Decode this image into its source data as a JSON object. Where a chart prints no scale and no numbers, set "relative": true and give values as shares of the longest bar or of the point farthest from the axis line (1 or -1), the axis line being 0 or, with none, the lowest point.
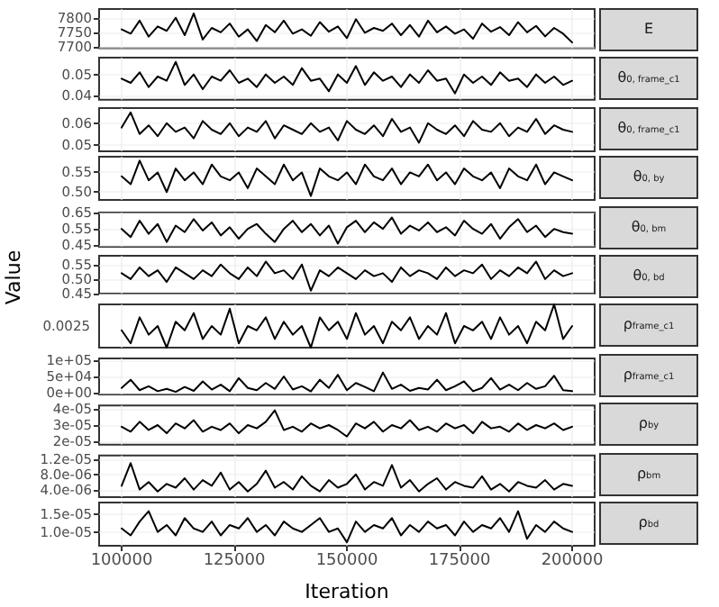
{
  "chart_data": [
    {
      "type": "line",
      "y2label": "E",
      "x": [
        100000,
        102000,
        104000,
        106000,
        108000,
        110000,
        112000,
        114000,
        116000,
        118000,
        120000,
        122000,
        124000,
        126000,
        128000,
        130000,
        132000,
        134000,
        136000,
        138000,
        140000,
        142000,
        144000,
        146000,
        148000,
        150000,
        152000,
        154000,
        156000,
        158000,
        160000,
        162000,
        164000,
        166000,
        168000,
        170000,
        172000,
        174000,
        176000,
        178000,
        180000,
        182000,
        184000,
        186000,
        188000,
        190000,
        192000,
        194000,
        196000,
        198000,
        200000
      ],
      "xlim": [
        95000,
        205000
      ],
      "xticks": [
        100000,
        125000,
        150000,
        175000,
        200000
      ],
      "ylim": [
        7695,
        7830
      ],
      "yticks": [
        7700,
        7750,
        7800
      ],
      "tick_labels": "y",
      "grid": true,
      "series": [
        {
          "color": "#000000",
          "values": [
            7760,
            7745,
            7790,
            7735,
            7770,
            7755,
            7800,
            7740,
            7815,
            7725,
            7765,
            7750,
            7780,
            7735,
            7760,
            7720,
            7775,
            7750,
            7790,
            7745,
            7760,
            7738,
            7785,
            7752,
            7770,
            7730,
            7795,
            7748,
            7765,
            7755,
            7780,
            7740,
            7775,
            7735,
            7790,
            7750,
            7770,
            7745,
            7760,
            7728,
            7780,
            7752,
            7768,
            7740,
            7785,
            7750,
            7772,
            7736,
            7765,
            7745,
            7715
          ]
        }
      ]
    },
    {
      "type": "line",
      "y2label": "θ$_{0, frame_c1}$",
      "x": [
        100000,
        102000,
        104000,
        106000,
        108000,
        110000,
        112000,
        114000,
        116000,
        118000,
        120000,
        122000,
        124000,
        126000,
        128000,
        130000,
        132000,
        134000,
        136000,
        138000,
        140000,
        142000,
        144000,
        146000,
        148000,
        150000,
        152000,
        154000,
        156000,
        158000,
        160000,
        162000,
        164000,
        166000,
        168000,
        170000,
        172000,
        174000,
        176000,
        178000,
        180000,
        182000,
        184000,
        186000,
        188000,
        190000,
        192000,
        194000,
        196000,
        198000,
        200000
      ],
      "xlim": [
        95000,
        205000
      ],
      "xticks": [
        100000,
        125000,
        150000,
        175000,
        200000
      ],
      "ylim": [
        0.038,
        0.058
      ],
      "yticks": [
        0.04,
        0.05
      ],
      "tick_labels": "y",
      "grid": true,
      "series": [
        {
          "color": "#000000",
          "values": [
            0.048,
            0.046,
            0.051,
            0.044,
            0.049,
            0.047,
            0.056,
            0.045,
            0.05,
            0.043,
            0.049,
            0.047,
            0.052,
            0.046,
            0.048,
            0.044,
            0.05,
            0.046,
            0.049,
            0.045,
            0.053,
            0.047,
            0.048,
            0.042,
            0.05,
            0.046,
            0.054,
            0.045,
            0.051,
            0.047,
            0.049,
            0.044,
            0.05,
            0.046,
            0.052,
            0.047,
            0.048,
            0.041,
            0.05,
            0.046,
            0.049,
            0.045,
            0.051,
            0.047,
            0.048,
            0.044,
            0.05,
            0.046,
            0.049,
            0.045,
            0.047
          ]
        }
      ]
    },
    {
      "type": "line",
      "y2label": "θ$_{0, frame_c1}$",
      "x": [
        100000,
        102000,
        104000,
        106000,
        108000,
        110000,
        112000,
        114000,
        116000,
        118000,
        120000,
        122000,
        124000,
        126000,
        128000,
        130000,
        132000,
        134000,
        136000,
        138000,
        140000,
        142000,
        144000,
        146000,
        148000,
        150000,
        152000,
        154000,
        156000,
        158000,
        160000,
        162000,
        164000,
        166000,
        168000,
        170000,
        172000,
        174000,
        176000,
        178000,
        180000,
        182000,
        184000,
        186000,
        188000,
        190000,
        192000,
        194000,
        196000,
        198000,
        200000
      ],
      "xlim": [
        95000,
        205000
      ],
      "xticks": [
        100000,
        125000,
        150000,
        175000,
        200000
      ],
      "ylim": [
        0.047,
        0.067
      ],
      "yticks": [
        0.05,
        0.06
      ],
      "tick_labels": "y",
      "grid": true,
      "series": [
        {
          "color": "#000000",
          "values": [
            0.058,
            0.065,
            0.055,
            0.059,
            0.054,
            0.06,
            0.056,
            0.058,
            0.053,
            0.061,
            0.057,
            0.055,
            0.06,
            0.054,
            0.058,
            0.056,
            0.061,
            0.053,
            0.059,
            0.057,
            0.055,
            0.06,
            0.056,
            0.058,
            0.052,
            0.061,
            0.057,
            0.055,
            0.059,
            0.054,
            0.062,
            0.056,
            0.058,
            0.051,
            0.06,
            0.057,
            0.055,
            0.059,
            0.054,
            0.061,
            0.057,
            0.056,
            0.06,
            0.054,
            0.058,
            0.056,
            0.062,
            0.055,
            0.059,
            0.057,
            0.056
          ]
        }
      ]
    },
    {
      "type": "line",
      "y2label": "θ$_{0, by}$",
      "x": [
        100000,
        102000,
        104000,
        106000,
        108000,
        110000,
        112000,
        114000,
        116000,
        118000,
        120000,
        122000,
        124000,
        126000,
        128000,
        130000,
        132000,
        134000,
        136000,
        138000,
        140000,
        142000,
        144000,
        146000,
        148000,
        150000,
        152000,
        154000,
        156000,
        158000,
        160000,
        162000,
        164000,
        166000,
        168000,
        170000,
        172000,
        174000,
        176000,
        178000,
        180000,
        182000,
        184000,
        186000,
        188000,
        190000,
        192000,
        194000,
        196000,
        198000,
        200000
      ],
      "xlim": [
        95000,
        205000
      ],
      "xticks": [
        100000,
        125000,
        150000,
        175000,
        200000
      ],
      "ylim": [
        0.48,
        0.59
      ],
      "yticks": [
        {
          "value": 0.5,
          "label": "0.50"
        },
        0.55
      ],
      "tick_labels": "y",
      "grid": true,
      "series": [
        {
          "color": "#000000",
          "values": [
            0.54,
            0.52,
            0.58,
            0.53,
            0.55,
            0.5,
            0.56,
            0.53,
            0.55,
            0.52,
            0.57,
            0.54,
            0.53,
            0.55,
            0.51,
            0.56,
            0.54,
            0.52,
            0.57,
            0.53,
            0.55,
            0.49,
            0.56,
            0.54,
            0.53,
            0.55,
            0.52,
            0.57,
            0.54,
            0.53,
            0.56,
            0.52,
            0.55,
            0.54,
            0.57,
            0.53,
            0.55,
            0.52,
            0.56,
            0.54,
            0.53,
            0.55,
            0.51,
            0.56,
            0.54,
            0.53,
            0.57,
            0.52,
            0.55,
            0.54,
            0.53
          ]
        }
      ]
    },
    {
      "type": "line",
      "y2label": "θ$_{0, bm}$",
      "x": [
        100000,
        102000,
        104000,
        106000,
        108000,
        110000,
        112000,
        114000,
        116000,
        118000,
        120000,
        122000,
        124000,
        126000,
        128000,
        130000,
        132000,
        134000,
        136000,
        138000,
        140000,
        142000,
        144000,
        146000,
        148000,
        150000,
        152000,
        154000,
        156000,
        158000,
        160000,
        162000,
        164000,
        166000,
        168000,
        170000,
        172000,
        174000,
        176000,
        178000,
        180000,
        182000,
        184000,
        186000,
        188000,
        190000,
        192000,
        194000,
        196000,
        198000,
        200000
      ],
      "xlim": [
        95000,
        205000
      ],
      "xticks": [
        100000,
        125000,
        150000,
        175000,
        200000
      ],
      "ylim": [
        0.44,
        0.65
      ],
      "yticks": [
        0.45,
        0.55,
        0.65
      ],
      "tick_labels": "y",
      "grid": true,
      "series": [
        {
          "color": "#000000",
          "values": [
            0.55,
            0.5,
            0.6,
            0.52,
            0.58,
            0.47,
            0.57,
            0.53,
            0.61,
            0.54,
            0.59,
            0.51,
            0.56,
            0.49,
            0.55,
            0.58,
            0.52,
            0.47,
            0.55,
            0.6,
            0.53,
            0.58,
            0.51,
            0.57,
            0.46,
            0.56,
            0.6,
            0.53,
            0.59,
            0.55,
            0.62,
            0.52,
            0.57,
            0.54,
            0.59,
            0.53,
            0.56,
            0.51,
            0.6,
            0.55,
            0.52,
            0.58,
            0.49,
            0.56,
            0.61,
            0.53,
            0.57,
            0.5,
            0.55,
            0.53,
            0.52
          ]
        }
      ]
    },
    {
      "type": "line",
      "y2label": "θ$_{0, bd}$",
      "ylabel": "Value",
      "x": [
        100000,
        102000,
        104000,
        106000,
        108000,
        110000,
        112000,
        114000,
        116000,
        118000,
        120000,
        122000,
        124000,
        126000,
        128000,
        130000,
        132000,
        134000,
        136000,
        138000,
        140000,
        142000,
        144000,
        146000,
        148000,
        150000,
        152000,
        154000,
        156000,
        158000,
        160000,
        162000,
        164000,
        166000,
        168000,
        170000,
        172000,
        174000,
        176000,
        178000,
        180000,
        182000,
        184000,
        186000,
        188000,
        190000,
        192000,
        194000,
        196000,
        198000,
        200000
      ],
      "xlim": [
        95000,
        205000
      ],
      "xticks": [
        100000,
        125000,
        150000,
        175000,
        200000
      ],
      "ylim": [
        0.45,
        0.58
      ],
      "yticks": [
        0.45,
        {
          "value": 0.5,
          "label": "0.50"
        },
        0.55
      ],
      "tick_labels": "y",
      "grid": true,
      "series": [
        {
          "color": "#000000",
          "values": [
            0.52,
            0.5,
            0.54,
            0.51,
            0.53,
            0.49,
            0.54,
            0.52,
            0.5,
            0.53,
            0.51,
            0.55,
            0.52,
            0.5,
            0.54,
            0.51,
            0.56,
            0.52,
            0.53,
            0.5,
            0.55,
            0.46,
            0.53,
            0.51,
            0.54,
            0.52,
            0.5,
            0.53,
            0.51,
            0.52,
            0.49,
            0.54,
            0.51,
            0.53,
            0.52,
            0.5,
            0.54,
            0.51,
            0.53,
            0.52,
            0.55,
            0.5,
            0.53,
            0.51,
            0.54,
            0.52,
            0.56,
            0.5,
            0.53,
            0.51,
            0.52
          ]
        }
      ]
    },
    {
      "type": "line",
      "y2label": "ρ$_{frame_c1}$",
      "x": [
        100000,
        102000,
        104000,
        106000,
        108000,
        110000,
        112000,
        114000,
        116000,
        118000,
        120000,
        122000,
        124000,
        126000,
        128000,
        130000,
        132000,
        134000,
        136000,
        138000,
        140000,
        142000,
        144000,
        146000,
        148000,
        150000,
        152000,
        154000,
        156000,
        158000,
        160000,
        162000,
        164000,
        166000,
        168000,
        170000,
        172000,
        174000,
        176000,
        178000,
        180000,
        182000,
        184000,
        186000,
        188000,
        190000,
        192000,
        194000,
        196000,
        198000,
        200000
      ],
      "xlim": [
        95000,
        205000
      ],
      "xticks": [
        100000,
        125000,
        150000,
        175000,
        200000
      ],
      "relative": true,
      "annotations": [
        "0.0025"
      ],
      "tick_labels": "y",
      "grid": "x",
      "series": [
        {
          "color": "#000000",
          "values": [
            0.4,
            0.1,
            0.7,
            0.3,
            0.5,
            0,
            0.6,
            0.4,
            0.8,
            0.2,
            0.5,
            0.3,
            0.9,
            0.1,
            0.5,
            0.4,
            0.7,
            0.2,
            0.6,
            0.3,
            0.5,
            0,
            0.7,
            0.4,
            0.6,
            0.2,
            0.8,
            0.3,
            0.5,
            0.1,
            0.6,
            0.4,
            0.7,
            0.2,
            0.5,
            0.3,
            0.8,
            0.1,
            0.5,
            0.4,
            0.6,
            0.2,
            0.7,
            0.3,
            0.5,
            0.1,
            0.6,
            0.4,
            1,
            0.2,
            0.5
          ]
        }
      ]
    },
    {
      "type": "line",
      "y2label": "ρ$_{frame_c1}$",
      "x": [
        100000,
        102000,
        104000,
        106000,
        108000,
        110000,
        112000,
        114000,
        116000,
        118000,
        120000,
        122000,
        124000,
        126000,
        128000,
        130000,
        132000,
        134000,
        136000,
        138000,
        140000,
        142000,
        144000,
        146000,
        148000,
        150000,
        152000,
        154000,
        156000,
        158000,
        160000,
        162000,
        164000,
        166000,
        168000,
        170000,
        172000,
        174000,
        176000,
        178000,
        180000,
        182000,
        184000,
        186000,
        188000,
        190000,
        192000,
        194000,
        196000,
        198000,
        200000
      ],
      "xlim": [
        95000,
        205000
      ],
      "xticks": [
        100000,
        125000,
        150000,
        175000,
        200000
      ],
      "ylim": [
        -5000,
        105000
      ],
      "yticks": [
        {
          "value": 0,
          "label": "0e+00"
        },
        {
          "value": 50000,
          "label": "5e+04"
        },
        {
          "value": 100000,
          "label": "1e+05"
        }
      ],
      "tick_labels": "y",
      "grid": true,
      "series": [
        {
          "color": "#000000",
          "values": [
            15000,
            40000,
            8000,
            20000,
            5000,
            12000,
            3000,
            18000,
            6000,
            35000,
            10000,
            25000,
            5000,
            45000,
            15000,
            8000,
            30000,
            12000,
            50000,
            10000,
            20000,
            4000,
            40000,
            15000,
            55000,
            8000,
            30000,
            18000,
            5000,
            62000,
            12000,
            25000,
            6000,
            15000,
            10000,
            40000,
            8000,
            20000,
            35000,
            5000,
            15000,
            45000,
            10000,
            25000,
            8000,
            30000,
            12000,
            20000,
            52000,
            8000,
            5000
          ]
        }
      ]
    },
    {
      "type": "line",
      "y2label": "ρ$_{by}$",
      "x": [
        100000,
        102000,
        104000,
        106000,
        108000,
        110000,
        112000,
        114000,
        116000,
        118000,
        120000,
        122000,
        124000,
        126000,
        128000,
        130000,
        132000,
        134000,
        136000,
        138000,
        140000,
        142000,
        144000,
        146000,
        148000,
        150000,
        152000,
        154000,
        156000,
        158000,
        160000,
        162000,
        164000,
        166000,
        168000,
        170000,
        172000,
        174000,
        176000,
        178000,
        180000,
        182000,
        184000,
        186000,
        188000,
        190000,
        192000,
        194000,
        196000,
        198000,
        200000
      ],
      "xlim": [
        95000,
        205000
      ],
      "xticks": [
        100000,
        125000,
        150000,
        175000,
        200000
      ],
      "ylim": [
        1.8e-05,
        4.2e-05
      ],
      "yticks": [
        {
          "value": 2e-05,
          "label": "2e-05"
        },
        {
          "value": 3e-05,
          "label": "3e-05"
        },
        {
          "value": 4e-05,
          "label": "4e-05"
        }
      ],
      "tick_labels": "y",
      "grid": true,
      "series": [
        {
          "color": "#000000",
          "values": [
            2.9e-05,
            2.6e-05,
            3.2e-05,
            2.7e-05,
            3e-05,
            2.5e-05,
            3.1e-05,
            2.8e-05,
            3.3e-05,
            2.6e-05,
            2.9e-05,
            2.7e-05,
            3.1e-05,
            2.5e-05,
            3e-05,
            2.8e-05,
            3.2e-05,
            3.9e-05,
            2.7e-05,
            2.9e-05,
            2.6e-05,
            3.1e-05,
            2.8e-05,
            3e-05,
            2.7e-05,
            2.3e-05,
            3.1e-05,
            2.8e-05,
            3.2e-05,
            2.6e-05,
            3e-05,
            2.8e-05,
            3.3e-05,
            2.7e-05,
            2.9e-05,
            2.6e-05,
            3.1e-05,
            2.8e-05,
            3e-05,
            2.5e-05,
            3.2e-05,
            2.8e-05,
            2.9e-05,
            2.6e-05,
            3.1e-05,
            2.7e-05,
            3e-05,
            2.8e-05,
            3.1e-05,
            2.7e-05,
            2.9e-05
          ]
        }
      ]
    },
    {
      "type": "line",
      "y2label": "ρ$_{bm}$",
      "x": [
        100000,
        102000,
        104000,
        106000,
        108000,
        110000,
        112000,
        114000,
        116000,
        118000,
        120000,
        122000,
        124000,
        126000,
        128000,
        130000,
        132000,
        134000,
        136000,
        138000,
        140000,
        142000,
        144000,
        146000,
        148000,
        150000,
        152000,
        154000,
        156000,
        158000,
        160000,
        162000,
        164000,
        166000,
        168000,
        170000,
        172000,
        174000,
        176000,
        178000,
        180000,
        182000,
        184000,
        186000,
        188000,
        190000,
        192000,
        194000,
        196000,
        198000,
        200000
      ],
      "xlim": [
        95000,
        205000
      ],
      "xticks": [
        100000,
        125000,
        150000,
        175000,
        200000
      ],
      "ylim": [
        2e-06,
        1.3e-05
      ],
      "yticks": [
        {
          "value": 4e-06,
          "label": "4.0e-06"
        },
        {
          "value": 8e-06,
          "label": "8.0e-06"
        },
        {
          "value": 1.2e-05,
          "label": "1.2e-05"
        }
      ],
      "tick_labels": "y",
      "grid": true,
      "series": [
        {
          "color": "#000000",
          "values": [
            5e-06,
            1.1e-05,
            4e-06,
            6e-06,
            3.5e-06,
            5.5e-06,
            4.5e-06,
            7e-06,
            4e-06,
            6.5e-06,
            5e-06,
            8.5e-06,
            4e-06,
            6e-06,
            3.5e-06,
            5.5e-06,
            9e-06,
            4.5e-06,
            6e-06,
            4e-06,
            7.5e-06,
            5e-06,
            3.5e-06,
            6.5e-06,
            4.5e-06,
            5.5e-06,
            8e-06,
            4e-06,
            6e-06,
            5e-06,
            1.05e-05,
            4.5e-06,
            6.5e-06,
            3.5e-06,
            5.5e-06,
            7e-06,
            4e-06,
            6e-06,
            5e-06,
            4.5e-06,
            7.5e-06,
            4e-06,
            5.5e-06,
            3.5e-06,
            6e-06,
            5e-06,
            4.5e-06,
            6.5e-06,
            4e-06,
            5.5e-06,
            5e-06
          ]
        }
      ]
    },
    {
      "type": "line",
      "y2label": "ρ$_{bd}$",
      "xlabel": "Iteration",
      "x": [
        100000,
        102000,
        104000,
        106000,
        108000,
        110000,
        112000,
        114000,
        116000,
        118000,
        120000,
        122000,
        124000,
        126000,
        128000,
        130000,
        132000,
        134000,
        136000,
        138000,
        140000,
        142000,
        144000,
        146000,
        148000,
        150000,
        152000,
        154000,
        156000,
        158000,
        160000,
        162000,
        164000,
        166000,
        168000,
        170000,
        172000,
        174000,
        176000,
        178000,
        180000,
        182000,
        184000,
        186000,
        188000,
        190000,
        192000,
        194000,
        196000,
        198000,
        200000
      ],
      "xlim": [
        95000,
        205000
      ],
      "xticks": [
        100000,
        125000,
        150000,
        175000,
        200000
      ],
      "ylim": [
        6e-06,
        1.85e-05
      ],
      "yticks": [
        {
          "value": 1e-05,
          "label": "1.0e-05"
        },
        {
          "value": 1.5e-05,
          "label": "1.5e-05"
        }
      ],
      "grid": true,
      "series": [
        {
          "color": "#000000",
          "values": [
            1.1e-05,
            9e-06,
            1.3e-05,
            1.6e-05,
            1e-05,
            1.2e-05,
            9e-06,
            1.4e-05,
            1.1e-05,
            1e-05,
            1.3e-05,
            9e-06,
            1.2e-05,
            1.1e-05,
            1.4e-05,
            1e-05,
            1.2e-05,
            9e-06,
            1.3e-05,
            1.1e-05,
            1e-05,
            1.2e-05,
            1.4e-05,
            1e-05,
            1.1e-05,
            7e-06,
            1.3e-05,
            1e-05,
            1.2e-05,
            1.1e-05,
            1.4e-05,
            9e-06,
            1.2e-05,
            1e-05,
            1.3e-05,
            1.1e-05,
            1.2e-05,
            9e-06,
            1.3e-05,
            1e-05,
            1.2e-05,
            1.1e-05,
            1.4e-05,
            1e-05,
            1.6e-05,
            8e-06,
            1.2e-05,
            1e-05,
            1.3e-05,
            1.1e-05,
            1e-05
          ]
        }
      ]
    }
  ]
}
